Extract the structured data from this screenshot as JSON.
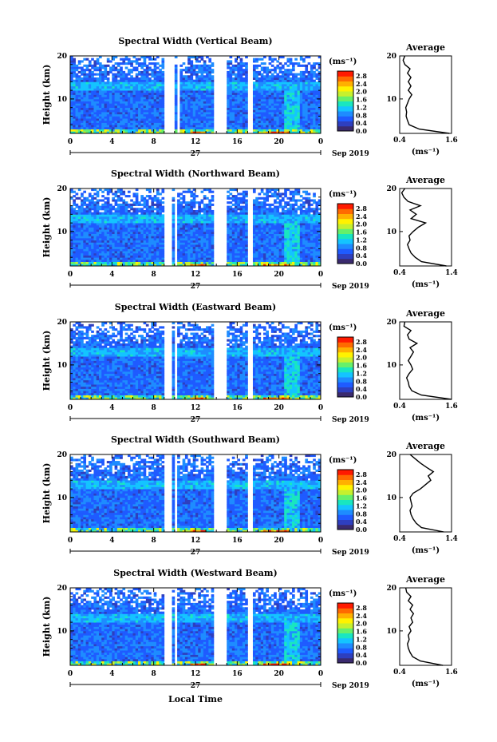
{
  "figure": {
    "xlabel": "Local Time",
    "date_day": "27",
    "date_month_year": "Sep 2019",
    "colorbar_unit": "(ms⁻¹)",
    "colorbar_ticks": [
      "2.8",
      "2.4",
      "2.0",
      "1.6",
      "1.2",
      "0.8",
      "0.4",
      "0.0"
    ],
    "colormap": [
      "#3a2a6e",
      "#2e3fbf",
      "#1f5bff",
      "#1e8cff",
      "#14c4ff",
      "#19e6c0",
      "#66f06a",
      "#c6f02e",
      "#fff200",
      "#ffb000",
      "#ff6a00",
      "#ff1a00"
    ],
    "x_ticks": [
      "0",
      "4",
      "8",
      "12",
      "16",
      "20",
      "0"
    ],
    "y_ticks": [
      "20",
      "10"
    ],
    "ylabel": "Height (km)",
    "avg_title": "Average",
    "avg_unit": "(ms⁻¹)"
  },
  "chart_data": [
    {
      "type": "heatmap",
      "title": "Spectral Width (Vertical Beam)",
      "xlim": [
        0,
        24
      ],
      "ylim": [
        2,
        20
      ],
      "data_gaps_hours": [
        [
          9.0,
          10.0
        ],
        [
          10.3,
          10.6
        ],
        [
          13.7,
          15.1
        ],
        [
          17.0,
          17.4
        ]
      ],
      "avg_profile": {
        "xlabel_ticks": [
          "0.4",
          "1.6"
        ],
        "xlim": [
          0.4,
          1.6
        ],
        "height_km": [
          2,
          3,
          4,
          5,
          6,
          7,
          8,
          9,
          10,
          11,
          12,
          13,
          14,
          15,
          16,
          17,
          18,
          19,
          20
        ],
        "value": [
          1.55,
          0.85,
          0.62,
          0.58,
          0.55,
          0.56,
          0.54,
          0.58,
          0.62,
          0.68,
          0.6,
          0.66,
          0.6,
          0.66,
          0.58,
          0.64,
          0.52,
          0.48,
          0.52
        ]
      }
    },
    {
      "type": "heatmap",
      "title": "Spectral Width (Northward Beam)",
      "xlim": [
        0,
        24
      ],
      "ylim": [
        2,
        20
      ],
      "data_gaps_hours": [
        [
          9.0,
          9.7
        ],
        [
          10.0,
          10.3
        ],
        [
          13.7,
          15.1
        ],
        [
          17.0,
          17.4
        ]
      ],
      "avg_profile": {
        "xlabel_ticks": [
          "0.4",
          "1.4"
        ],
        "xlim": [
          0.4,
          1.4
        ],
        "height_km": [
          2,
          3,
          4,
          5,
          6,
          7,
          8,
          9,
          10,
          11,
          12,
          13,
          14,
          15,
          16,
          17,
          18,
          19,
          20
        ],
        "value": [
          1.3,
          0.82,
          0.7,
          0.62,
          0.58,
          0.55,
          0.6,
          0.58,
          0.66,
          0.76,
          0.9,
          0.62,
          0.72,
          0.6,
          0.8,
          0.56,
          0.48,
          0.44,
          0.5
        ]
      }
    },
    {
      "type": "heatmap",
      "title": "Spectral Width (Eastward Beam)",
      "xlim": [
        0,
        24
      ],
      "ylim": [
        2,
        20
      ],
      "data_gaps_hours": [
        [
          9.0,
          9.7
        ],
        [
          10.0,
          10.3
        ],
        [
          13.7,
          15.1
        ],
        [
          17.0,
          17.4
        ]
      ],
      "avg_profile": {
        "xlabel_ticks": [
          "0.4",
          "1.6"
        ],
        "xlim": [
          0.4,
          1.6
        ],
        "height_km": [
          2,
          3,
          4,
          5,
          6,
          7,
          8,
          9,
          10,
          11,
          12,
          13,
          14,
          15,
          16,
          17,
          18,
          19,
          20
        ],
        "value": [
          1.6,
          0.9,
          0.68,
          0.62,
          0.6,
          0.56,
          0.62,
          0.7,
          0.66,
          0.6,
          0.66,
          0.72,
          0.64,
          0.8,
          0.62,
          0.58,
          0.66,
          0.5,
          0.52
        ]
      }
    },
    {
      "type": "heatmap",
      "title": "Spectral Width (Southward Beam)",
      "xlim": [
        0,
        24
      ],
      "ylim": [
        2,
        20
      ],
      "data_gaps_hours": [
        [
          9.0,
          9.7
        ],
        [
          10.0,
          10.3
        ],
        [
          13.7,
          15.1
        ],
        [
          17.0,
          17.4
        ]
      ],
      "avg_profile": {
        "xlabel_ticks": [
          "0.4",
          "1.4"
        ],
        "xlim": [
          0.4,
          1.4
        ],
        "height_km": [
          2,
          3,
          4,
          5,
          6,
          7,
          8,
          9,
          10,
          11,
          12,
          13,
          14,
          15,
          16,
          17,
          18,
          19,
          20
        ],
        "value": [
          1.25,
          0.82,
          0.72,
          0.66,
          0.62,
          0.6,
          0.64,
          0.62,
          0.6,
          0.66,
          0.8,
          0.9,
          1.0,
          0.95,
          1.05,
          0.92,
          0.8,
          0.7,
          0.6
        ]
      }
    },
    {
      "type": "heatmap",
      "title": "Spectral Width (Westward Beam)",
      "xlim": [
        0,
        24
      ],
      "ylim": [
        2,
        20
      ],
      "data_gaps_hours": [
        [
          9.0,
          9.7
        ],
        [
          10.0,
          10.3
        ],
        [
          13.7,
          15.1
        ],
        [
          17.0,
          17.4
        ]
      ],
      "avg_profile": {
        "xlabel_ticks": [
          "0.4",
          "1.6"
        ],
        "xlim": [
          0.4,
          1.6
        ],
        "height_km": [
          2,
          3,
          4,
          5,
          6,
          7,
          8,
          9,
          10,
          11,
          12,
          13,
          14,
          15,
          16,
          17,
          18,
          19,
          20
        ],
        "value": [
          1.4,
          0.88,
          0.7,
          0.64,
          0.6,
          0.58,
          0.62,
          0.6,
          0.66,
          0.62,
          0.7,
          0.66,
          0.72,
          0.64,
          0.7,
          0.6,
          0.66,
          0.56,
          0.54
        ]
      }
    }
  ]
}
